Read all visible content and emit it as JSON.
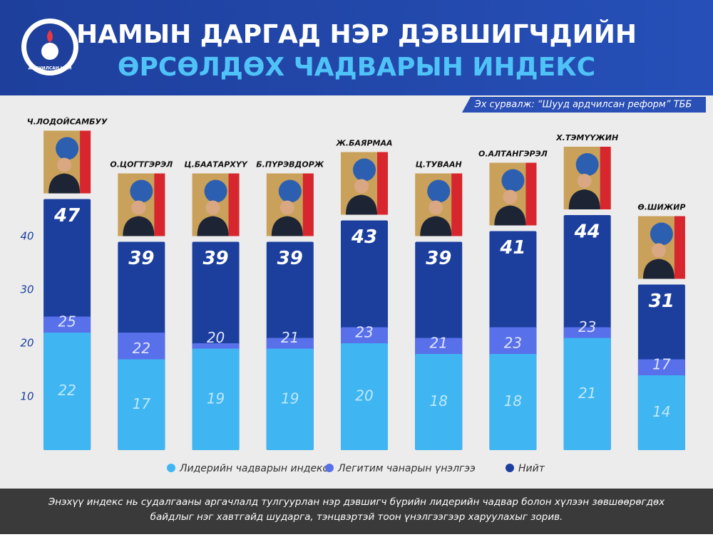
{
  "header": {
    "title_line1": "НАМЫН ДАРГАД НЭР ДЭВШИГЧДИЙН",
    "title_line2": "ӨРСӨЛДӨХ ЧАДВАРЫН ИНДЕКС",
    "logo_text": "АРДЧИЛСАН НАМ",
    "source": "Эх сурвалж: “Шууд ардчилсан реформ” ТББ"
  },
  "chart_data": {
    "type": "bar",
    "categories": [
      "Ч.ЛОДОЙСАМБУУ",
      "О.ЦОГТГЭРЭЛ",
      "Ц.БААТАРХҮҮ",
      "Б.ПҮРЭВДОРЖ",
      "Ж.БАЯРМАА",
      "Ц.ТУВААН",
      "О.АЛТАНГЭРЭЛ",
      "Х.ТЭМҮҮЖИН",
      "Ө.ШИЖИР"
    ],
    "series": [
      {
        "name": "Лидерийн чадварын индекс",
        "color": "#3fb6f2",
        "values": [
          22,
          17,
          19,
          19,
          20,
          18,
          18,
          21,
          14
        ]
      },
      {
        "name": "Легитим чанарын үнэлгээ",
        "color": "#5870ea",
        "values": [
          25,
          22,
          20,
          21,
          23,
          21,
          23,
          23,
          17
        ]
      },
      {
        "name": "Нийт",
        "color": "#1c3f9e",
        "values": [
          47,
          39,
          39,
          39,
          43,
          39,
          41,
          44,
          31
        ]
      }
    ],
    "ylim": [
      0,
      50
    ],
    "yticks": [
      10,
      20,
      30,
      40
    ]
  },
  "footer": {
    "lines": [
      "Энэхүү индекс нь судалгааны аргачлалд тулгуурлан нэр дэвшигч бүрийн лидерийн чадвар болон хүлээн зөвшөөрөгдөх",
      "байдлыг нэг хавтгайд шударга, тэнцвэртэй тоон үнэлгээгээр харуулахыг зорив."
    ]
  }
}
